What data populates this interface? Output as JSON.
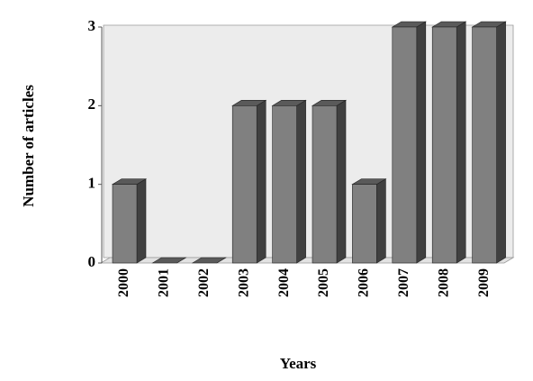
{
  "chart_data": {
    "type": "bar3d",
    "categories": [
      "2000",
      "2001",
      "2002",
      "2003",
      "2004",
      "2005",
      "2006",
      "2007",
      "2008",
      "2009"
    ],
    "values": [
      1,
      0,
      0,
      2,
      2,
      2,
      1,
      3,
      3,
      3
    ],
    "color": "#808080",
    "ylim": [
      0,
      3
    ],
    "yticks": [
      0,
      1,
      2,
      3
    ],
    "x_label": "Years",
    "y_label": "Number of articles",
    "grid": false
  }
}
